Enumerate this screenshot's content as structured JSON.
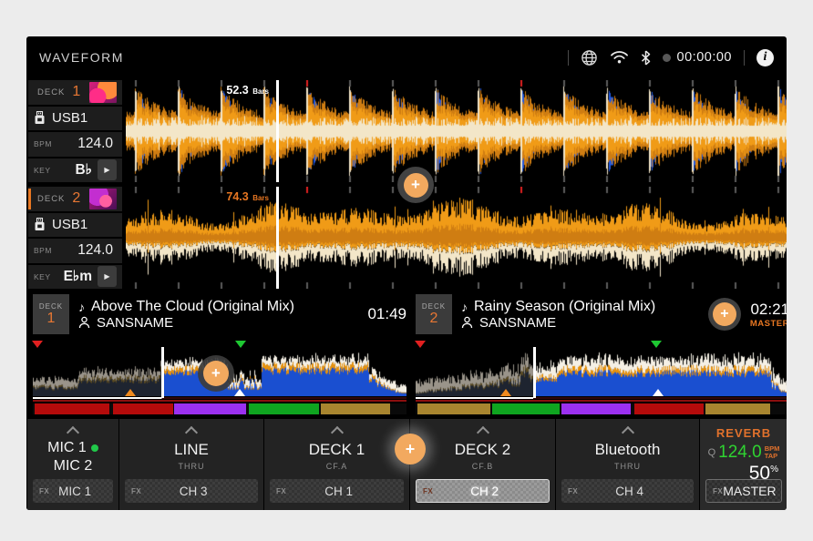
{
  "titlebar": {
    "title": "WAVEFORM",
    "clock": "00:00:00"
  },
  "icons": {
    "plus": "+",
    "music_note": "♪",
    "play": "▶"
  },
  "decks": [
    {
      "deck_label": "DECK",
      "number": "1",
      "source": "USB1",
      "bpm_label": "BPM",
      "bpm": "124.0",
      "key_label": "KEY",
      "key": "B♭",
      "bars": "52.3",
      "bars_unit": "Bars",
      "active": false,
      "wave": {
        "style": "three-band",
        "playhead": 0.227,
        "red_ticks": [
          4,
          9
        ]
      }
    },
    {
      "deck_label": "DECK",
      "number": "2",
      "source": "USB1",
      "bpm_label": "BPM",
      "bpm": "124.0",
      "key_label": "KEY",
      "key": "E♭m",
      "bars": "74.3",
      "bars_unit": "Bars",
      "active": true,
      "wave": {
        "style": "single-band",
        "playhead": 0.227,
        "red_ticks": [
          4,
          9
        ]
      }
    }
  ],
  "tracks": [
    {
      "deck_label": "DECK",
      "number": "1",
      "title": "Above The Cloud (Original Mix)",
      "artist": "SANSNAME",
      "time": "01:49",
      "master": "",
      "overview": {
        "playhead": 0.345,
        "hotcue": 0.012,
        "green_marker": 0.557,
        "orange_marker": 0.262,
        "white_marker": 0.553,
        "has_plus": true,
        "plus_x": 0.49
      },
      "phrases": [
        [
          "#b50b0b",
          0.005,
          0.205
        ],
        [
          "#b50b0b",
          0.215,
          0.375
        ],
        [
          "#9b30f0",
          0.378,
          0.57
        ],
        [
          "#0fa520",
          0.578,
          0.765
        ],
        [
          "#a8852f",
          0.77,
          0.955
        ]
      ]
    },
    {
      "deck_label": "DECK",
      "number": "2",
      "title": "Rainy Season (Original Mix)",
      "artist": "SANSNAME",
      "time": "02:21",
      "master": "MASTER",
      "overview": {
        "playhead": 0.315,
        "hotcue": 0.012,
        "green_marker": 0.645,
        "orange_marker": 0.242,
        "white_marker": 0.648,
        "has_plus": false,
        "plus_x": 0
      },
      "phrases": [
        [
          "#a8852f",
          0.005,
          0.2
        ],
        [
          "#0fa520",
          0.205,
          0.385
        ],
        [
          "#9b30f0",
          0.39,
          0.575
        ],
        [
          "#b50b0b",
          0.585,
          0.77
        ],
        [
          "#a8852f",
          0.775,
          0.948
        ]
      ]
    }
  ],
  "mixer": {
    "fx_label": "FX",
    "strips": [
      {
        "line1": "MIC 1",
        "line2": "MIC 2",
        "sub": "",
        "fx": "MIC 1"
      },
      {
        "line1": "LINE",
        "line2": "",
        "sub": "THRU",
        "fx": "CH 3"
      },
      {
        "line1": "DECK 1",
        "line2": "",
        "sub": "CF.A",
        "fx": "CH 1"
      },
      {
        "line1": "DECK 2",
        "line2": "",
        "sub": "CF.B",
        "fx": "CH 2"
      },
      {
        "line1": "Bluetooth",
        "line2": "",
        "sub": "THRU",
        "fx": "CH 4"
      }
    ],
    "fx_panel": {
      "name": "REVERB",
      "q_label": "Q",
      "bpm_value": "124.0",
      "bpm_label": "BPM",
      "tap_label": "TAP",
      "amount": "50",
      "unit": "%",
      "fx": "MASTER"
    }
  },
  "colors": {
    "accent_orange": "#e87733",
    "value_green": "#2fd331",
    "mic_dot_green": "#21c84a",
    "wave_blue": "#2158e0",
    "wave_orange": "#cf7d12",
    "wave_orange_bright": "#f09b17",
    "wave_cream": "#f3e6c8",
    "overview_blue": "#1a4fd0",
    "overview_orange": "#e8920c",
    "overview_white": "#f5f0e5",
    "cue_red": "#e02020"
  }
}
